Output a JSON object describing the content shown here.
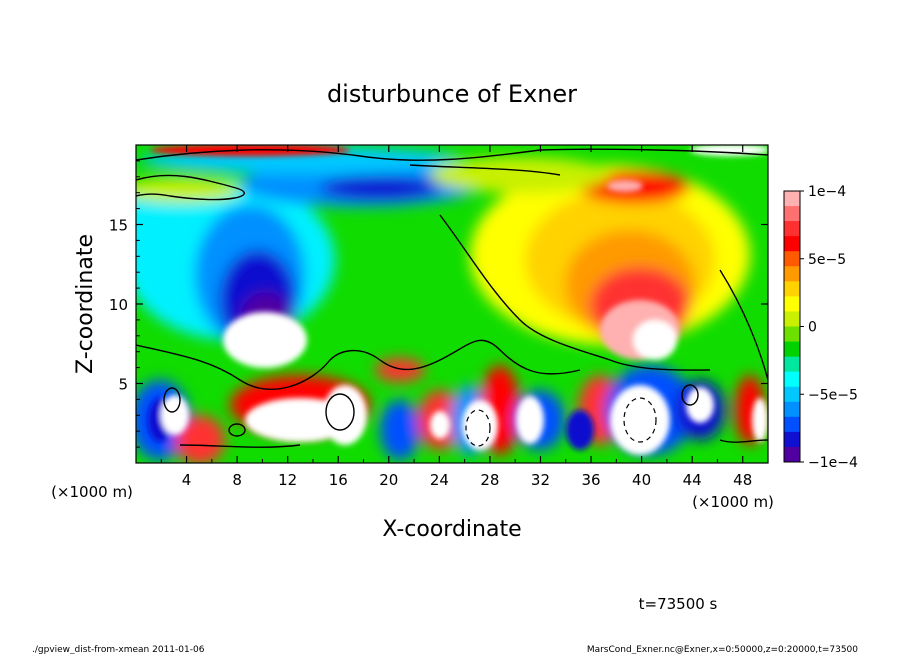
{
  "chart_data": {
    "type": "heatmap",
    "title": "disturbunce of Exner",
    "xlabel": "X-coordinate",
    "ylabel": "Z-coordinate",
    "x_unit_label": "(×1000 m)",
    "y_unit_label": "(×1000 m)",
    "xlim": [
      0,
      50
    ],
    "ylim": [
      0,
      20
    ],
    "x_ticks": [
      "4",
      "8",
      "12",
      "16",
      "20",
      "24",
      "28",
      "32",
      "36",
      "40",
      "44",
      "48"
    ],
    "y_ticks": [
      "5",
      "10",
      "15"
    ],
    "colorbar": {
      "range": [
        -0.0001,
        0.0001
      ],
      "tick_labels": [
        "1e−4",
        "5e−5",
        "0",
        "−5e−5",
        "−1e−4"
      ],
      "colors": [
        "#ffb0b0",
        "#ff7070",
        "#ff3030",
        "#ff0000",
        "#ff5a00",
        "#ff9a00",
        "#ffd200",
        "#ffff00",
        "#c8f000",
        "#6ee000",
        "#00d200",
        "#00e8a0",
        "#00ffff",
        "#00c8ff",
        "#0090ff",
        "#0050ff",
        "#1010d0",
        "#5000a0"
      ]
    },
    "features": [
      {
        "label": "positive max (white, >1e-4)",
        "x": 10,
        "z": 8
      },
      {
        "label": "negative max (dark blue)",
        "x": 10,
        "z": 11.5
      },
      {
        "label": "positive band",
        "x": 38,
        "z": 17
      },
      {
        "label": "negative band",
        "x": 18,
        "z": 17
      }
    ],
    "time_label": "t=73500 s"
  },
  "footer": {
    "left": "./gpview_dist-from-xmean  2011-01-06",
    "right": "MarsCond_Exner.nc@Exner,x=0:50000,z=0:20000,t=73500"
  }
}
